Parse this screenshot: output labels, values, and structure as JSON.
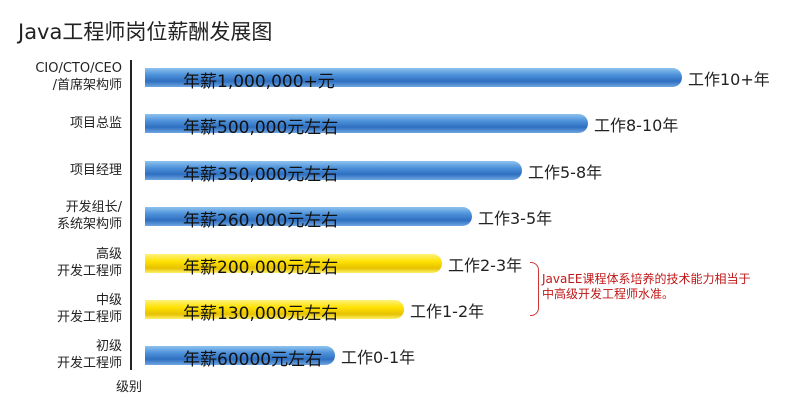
{
  "chart_data": {
    "type": "bar",
    "orientation": "horizontal",
    "title": "Java工程师岗位薪酬发展图",
    "xlabel": "级别",
    "categories": [
      "CIO/CTO/CEO\n/首席架构师",
      "项目总监",
      "项目经理",
      "开发组长/\n系统架构师",
      "高级\n开发工程师",
      "中级\n开发工程师",
      "初级\n开发工程师"
    ],
    "salary_labels": [
      "年薪1,000,000+元",
      "年薪500,000元左右",
      "年薪350,000元左右",
      "年薪260,000元左右",
      "年薪200,000元左右",
      "年薪130,000元左右",
      "年薪60000元左右"
    ],
    "experience_labels": [
      "工作10+年",
      "工作8-10年",
      "工作5-8年",
      "工作3-5年",
      "工作2-3年",
      "工作1-2年",
      "工作0-1年"
    ],
    "bar_colors": [
      "#3a7fcf",
      "#3a7fcf",
      "#3a7fcf",
      "#3a7fcf",
      "#ffe100",
      "#ffe100",
      "#3a7fcf"
    ],
    "annotation": "JavaEE课程体系培养的技术能力相当于\n中高级开发工程师水准。",
    "annotation_color": "#c01818"
  }
}
